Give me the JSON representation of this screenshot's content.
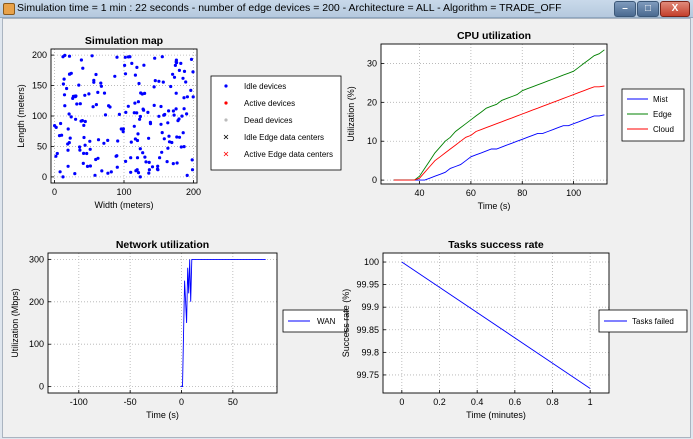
{
  "window": {
    "title": "Simulation time = 1 min : 22 seconds  -  number of edge devices = 200  -  Architecture = ALL  -  Algorithm = TRADE_OFF",
    "minimize_label": "–",
    "maximize_label": "□",
    "close_label": "X"
  },
  "colors": {
    "mist": "#0000ff",
    "edge": "#008000",
    "cloud": "#ff0000",
    "wan": "#0000ff",
    "tasks": "#0000ff"
  },
  "chart_data": [
    {
      "id": "map",
      "type": "scatter",
      "title": "Simulation map",
      "xlabel": "Width (meters)",
      "ylabel": "Length (meters)",
      "xlim": [
        -5,
        205
      ],
      "ylim": [
        -10,
        210
      ],
      "xticks": [
        "0",
        "100",
        "200"
      ],
      "yticks": [
        "0",
        "50",
        "100",
        "150",
        "200"
      ],
      "legend": [
        "Idle devices",
        "Active devices",
        "Dead devices",
        "Idle Edge data centers",
        "Active Edge data centers"
      ],
      "point_count": 200,
      "seed": 7
    },
    {
      "id": "cpu",
      "type": "line",
      "title": "CPU utilization",
      "xlabel": "Time (s)",
      "ylabel": "Utilization (%)",
      "xlim": [
        25,
        113
      ],
      "ylim": [
        -1,
        35
      ],
      "xticks": [
        "40",
        "60",
        "80",
        "100"
      ],
      "yticks": [
        "0",
        "10",
        "20",
        "30"
      ],
      "series": [
        {
          "name": "Mist",
          "x": [
            30,
            38,
            40,
            42,
            44,
            46,
            48,
            50,
            52,
            54,
            56,
            58,
            60,
            62,
            64,
            66,
            68,
            70,
            72,
            74,
            76,
            78,
            80,
            82,
            84,
            86,
            88,
            90,
            92,
            94,
            96,
            98,
            100,
            102,
            104,
            106,
            108,
            110,
            112
          ],
          "y": [
            0,
            0,
            0,
            0,
            0.5,
            1,
            1.5,
            2,
            3,
            3.5,
            4,
            5,
            6,
            6.5,
            7,
            7.5,
            8,
            8,
            8.5,
            9,
            9.5,
            10,
            10.5,
            11,
            11.5,
            12,
            12,
            12.5,
            13,
            13.5,
            14,
            14,
            14.5,
            15,
            15.5,
            16,
            16.5,
            16.5,
            16.8
          ]
        },
        {
          "name": "Edge",
          "x": [
            30,
            38,
            40,
            42,
            44,
            46,
            48,
            50,
            52,
            54,
            56,
            58,
            60,
            62,
            64,
            66,
            68,
            70,
            72,
            74,
            76,
            78,
            80,
            82,
            84,
            86,
            88,
            90,
            92,
            94,
            96,
            98,
            100,
            102,
            104,
            106,
            108,
            110,
            112
          ],
          "y": [
            0,
            0,
            1,
            3,
            5,
            7,
            8.5,
            10,
            11,
            12.5,
            13.5,
            14.5,
            15.5,
            16.5,
            17.5,
            18.5,
            19,
            19.5,
            20.5,
            21,
            21.5,
            22,
            23,
            23.5,
            24,
            24.5,
            25,
            25.5,
            26,
            26.5,
            27,
            27.5,
            28,
            29,
            30,
            31,
            32,
            32.5,
            33.5
          ]
        },
        {
          "name": "Cloud",
          "x": [
            30,
            38,
            40,
            42,
            44,
            46,
            48,
            50,
            52,
            54,
            56,
            58,
            60,
            62,
            64,
            66,
            68,
            70,
            72,
            74,
            76,
            78,
            80,
            82,
            84,
            86,
            88,
            90,
            92,
            94,
            96,
            98,
            100,
            102,
            104,
            106,
            108,
            110,
            112
          ],
          "y": [
            0,
            0,
            0.5,
            2,
            3.5,
            5,
            6,
            7,
            8,
            9,
            10,
            11,
            11.5,
            12.5,
            13,
            13.5,
            14,
            14.5,
            15,
            15.5,
            16,
            16.5,
            17,
            17.5,
            18,
            18.5,
            19,
            19.5,
            20,
            20.5,
            21,
            21.5,
            22,
            22.5,
            23,
            23.5,
            24,
            24,
            24.2
          ]
        }
      ],
      "legend": [
        "Mist",
        "Edge",
        "Cloud"
      ]
    },
    {
      "id": "net",
      "type": "line",
      "title": "Network utilization",
      "xlabel": "Time (s)",
      "ylabel": "Utilization (Mbps)",
      "xlim": [
        -130,
        93
      ],
      "ylim": [
        -15,
        315
      ],
      "xticks": [
        "-100",
        "-50",
        "0",
        "50"
      ],
      "yticks": [
        "0",
        "100",
        "200",
        "300"
      ],
      "series": [
        {
          "name": "WAN",
          "x": [
            -1,
            1,
            3,
            5,
            6,
            7,
            8,
            9,
            10,
            12,
            20,
            40,
            60,
            82
          ],
          "y": [
            0,
            0,
            250,
            150,
            280,
            220,
            300,
            200,
            300,
            300,
            300,
            300,
            300,
            300
          ]
        }
      ],
      "legend": [
        "WAN"
      ]
    },
    {
      "id": "tasks",
      "type": "line",
      "title": "Tasks success rate",
      "xlabel": "Time (minutes)",
      "ylabel": "Success rate (%)",
      "xlim": [
        -0.1,
        1.1
      ],
      "ylim": [
        99.71,
        100.02
      ],
      "xticks": [
        "0",
        "0.2",
        "0.4",
        "0.6",
        "0.8",
        "1"
      ],
      "yticks": [
        "99.75",
        "99.8",
        "99.85",
        "99.9",
        "99.95",
        "100"
      ],
      "series": [
        {
          "name": "Tasks failed",
          "x": [
            0,
            1
          ],
          "y": [
            100,
            99.72
          ]
        }
      ],
      "legend": [
        "Tasks failed"
      ]
    }
  ]
}
